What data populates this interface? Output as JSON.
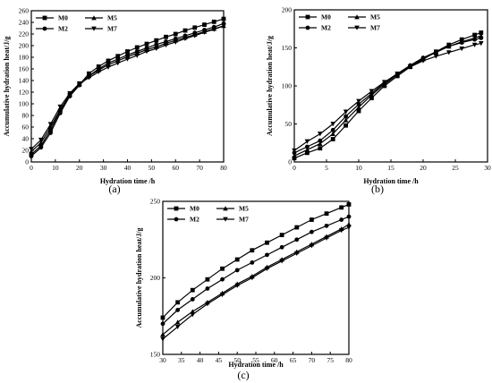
{
  "chart_data": [
    {
      "type": "line",
      "panel_label": "(a)",
      "xlabel": "Hydration time /h",
      "ylabel": "Accumulative hydration heat/J/g",
      "xlim": [
        0,
        80
      ],
      "ylim": [
        0,
        260
      ],
      "xticks": [
        0,
        10,
        20,
        30,
        40,
        50,
        60,
        70,
        80
      ],
      "yticks": [
        0,
        20,
        40,
        60,
        80,
        100,
        120,
        140,
        160,
        180,
        200,
        220,
        240,
        260
      ],
      "legend_position": "top-left",
      "series": [
        {
          "name": "M0",
          "marker": "square",
          "x": [
            0,
            4,
            8,
            12,
            16,
            20,
            24,
            28,
            32,
            36,
            40,
            44,
            48,
            52,
            56,
            60,
            64,
            68,
            72,
            76,
            80
          ],
          "y": [
            13,
            28,
            55,
            88,
            115,
            133,
            152,
            164,
            174,
            182,
            190,
            197,
            203,
            209,
            215,
            220,
            226,
            231,
            236,
            241,
            246
          ]
        },
        {
          "name": "M5",
          "marker": "triangle-up",
          "x": [
            0,
            4,
            8,
            12,
            16,
            20,
            24,
            28,
            32,
            36,
            40,
            44,
            48,
            52,
            56,
            60,
            64,
            68,
            72,
            76,
            80
          ],
          "y": [
            18,
            33,
            60,
            90,
            116,
            134,
            148,
            158,
            167,
            174,
            181,
            187,
            193,
            198,
            204,
            209,
            214,
            219,
            224,
            229,
            234
          ]
        },
        {
          "name": "M2",
          "marker": "circle",
          "x": [
            0,
            4,
            8,
            12,
            16,
            20,
            24,
            28,
            32,
            36,
            40,
            44,
            48,
            52,
            56,
            60,
            64,
            68,
            72,
            76,
            80
          ],
          "y": [
            10,
            25,
            50,
            84,
            113,
            132,
            148,
            160,
            170,
            177,
            184,
            190,
            196,
            202,
            207,
            212,
            217,
            222,
            227,
            232,
            238
          ]
        },
        {
          "name": "M7",
          "marker": "triangle-down",
          "x": [
            0,
            4,
            8,
            12,
            16,
            20,
            24,
            28,
            32,
            36,
            40,
            44,
            48,
            52,
            56,
            60,
            64,
            68,
            72,
            76,
            80
          ],
          "y": [
            22,
            38,
            65,
            95,
            118,
            135,
            145,
            155,
            163,
            170,
            177,
            183,
            190,
            195,
            201,
            206,
            212,
            217,
            223,
            228,
            234
          ]
        }
      ]
    },
    {
      "type": "line",
      "panel_label": "(b)",
      "xlabel": "Hydration time /h",
      "ylabel": "Accumulative hydration heat/J/g",
      "xlim": [
        0,
        30
      ],
      "ylim": [
        0,
        200
      ],
      "xticks": [
        0,
        5,
        10,
        15,
        20,
        25,
        30
      ],
      "yticks": [
        0,
        50,
        100,
        150,
        200
      ],
      "legend_position": "top-left",
      "series": [
        {
          "name": "M0",
          "marker": "square",
          "x": [
            0,
            2,
            4,
            6,
            8,
            10,
            12,
            14,
            16,
            18,
            20,
            22,
            24,
            26,
            28,
            29
          ],
          "y": [
            5,
            12,
            18,
            30,
            48,
            67,
            84,
            100,
            113,
            125,
            135,
            145,
            154,
            161,
            167,
            170
          ]
        },
        {
          "name": "M5",
          "marker": "triangle-up",
          "x": [
            0,
            2,
            4,
            6,
            8,
            10,
            12,
            14,
            16,
            18,
            20,
            22,
            24,
            26,
            28,
            29
          ],
          "y": [
            8,
            16,
            24,
            37,
            55,
            72,
            88,
            102,
            115,
            126,
            136,
            144,
            152,
            158,
            163,
            166
          ]
        },
        {
          "name": "M2",
          "marker": "circle",
          "x": [
            0,
            2,
            4,
            6,
            8,
            10,
            12,
            14,
            16,
            18,
            20,
            22,
            24,
            26,
            28,
            29
          ],
          "y": [
            12,
            20,
            28,
            42,
            60,
            76,
            90,
            104,
            116,
            127,
            137,
            145,
            152,
            157,
            161,
            163
          ]
        },
        {
          "name": "M7",
          "marker": "triangle-down",
          "x": [
            0,
            2,
            4,
            6,
            8,
            10,
            12,
            14,
            16,
            18,
            20,
            22,
            24,
            26,
            28,
            29
          ],
          "y": [
            15,
            27,
            37,
            50,
            66,
            80,
            93,
            105,
            116,
            125,
            133,
            139,
            144,
            149,
            154,
            156
          ]
        }
      ]
    },
    {
      "type": "line",
      "panel_label": "(c)",
      "xlabel": "Hydration time /h",
      "ylabel": "Accumulative hydration heat/J/g",
      "xlim": [
        30,
        80
      ],
      "ylim": [
        150,
        250
      ],
      "xticks": [
        30,
        35,
        40,
        45,
        50,
        55,
        60,
        65,
        70,
        75,
        80
      ],
      "yticks": [
        150,
        200,
        250
      ],
      "legend_position": "top-left",
      "series": [
        {
          "name": "M0",
          "marker": "square",
          "x": [
            30,
            34,
            38,
            42,
            46,
            50,
            54,
            58,
            62,
            66,
            70,
            74,
            78,
            80
          ],
          "y": [
            174,
            184,
            192,
            199,
            206,
            212,
            218,
            223,
            228,
            233,
            238,
            242,
            246,
            248
          ]
        },
        {
          "name": "M5",
          "marker": "triangle-up",
          "x": [
            30,
            34,
            38,
            42,
            46,
            50,
            54,
            58,
            62,
            66,
            70,
            74,
            78,
            80
          ],
          "y": [
            163,
            171,
            178,
            184,
            190,
            196,
            201,
            207,
            212,
            217,
            222,
            227,
            232,
            235
          ]
        },
        {
          "name": "M2",
          "marker": "circle",
          "x": [
            30,
            34,
            38,
            42,
            46,
            50,
            54,
            58,
            62,
            66,
            70,
            74,
            78,
            80
          ],
          "y": [
            170,
            179,
            186,
            193,
            199,
            205,
            210,
            215,
            220,
            225,
            230,
            234,
            238,
            240
          ]
        },
        {
          "name": "M7",
          "marker": "triangle-down",
          "x": [
            30,
            34,
            38,
            42,
            46,
            50,
            54,
            58,
            62,
            66,
            70,
            74,
            78,
            80
          ],
          "y": [
            160,
            168,
            176,
            183,
            189,
            195,
            200,
            206,
            211,
            216,
            221,
            226,
            231,
            233
          ]
        }
      ]
    }
  ]
}
